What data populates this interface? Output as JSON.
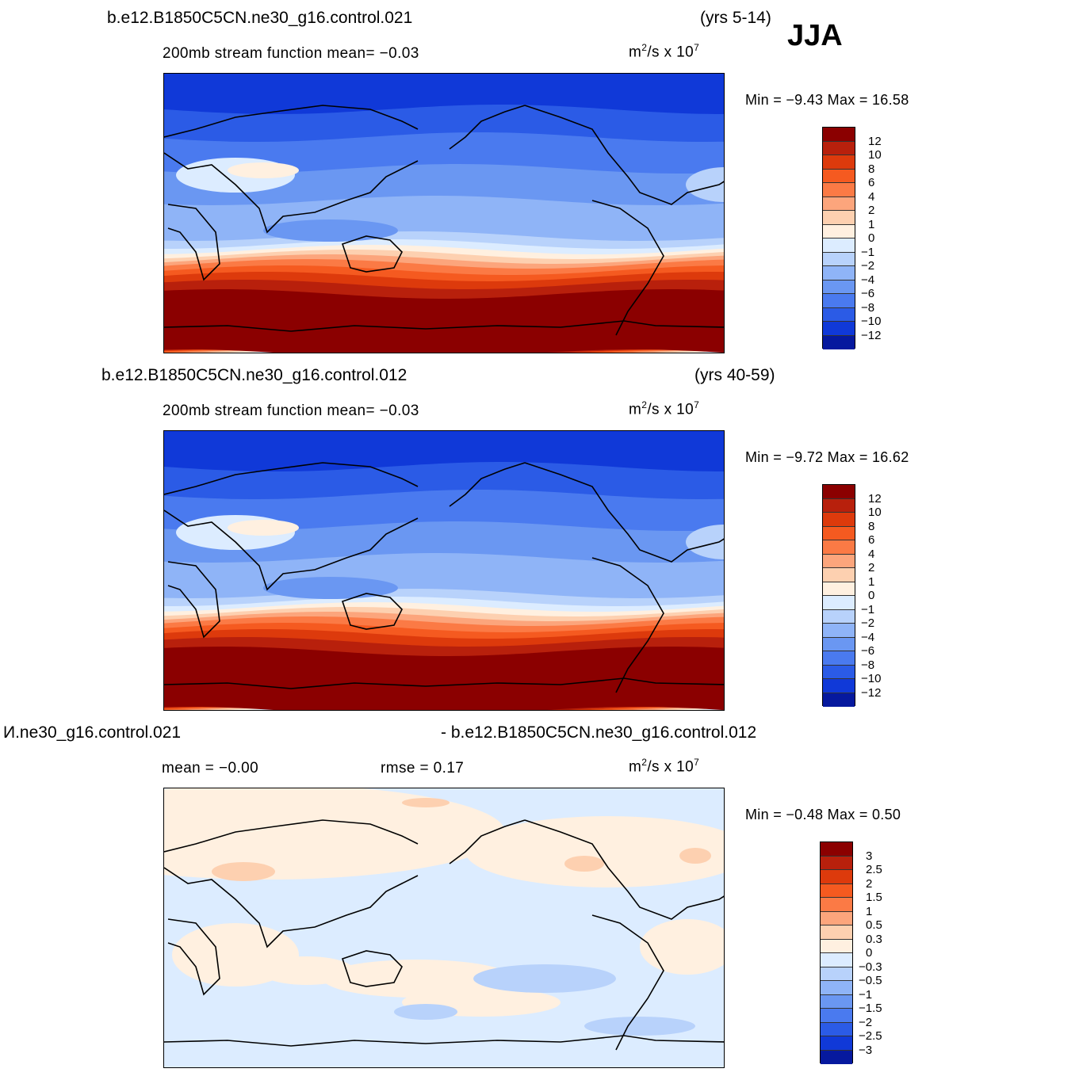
{
  "season": "JJA",
  "panels": [
    {
      "case_label": "b.e12.B1850C5CN.ne30_g16.control.021",
      "years": "(yrs 5-14)",
      "variable_label": "200mb stream function  mean=  −0.03",
      "units_base": "m",
      "units_exp": "2",
      "units_mid": "/s x 10",
      "units_pow": "7",
      "minmax": "Min =  −9.43 Max =   16.58",
      "legend_labels": [
        "12",
        "10",
        "8",
        "6",
        "4",
        "2",
        "1",
        "0",
        "−1",
        "−2",
        "−4",
        "−6",
        "−8",
        "−10",
        "−12"
      ],
      "legend_colors": [
        "#8b0000",
        "#b8200c",
        "#dd3a0c",
        "#f55a20",
        "#fb7a45",
        "#fca57c",
        "#fdd0b0",
        "#fff0e0",
        "#dcecff",
        "#b8d2fb",
        "#8fb4f7",
        "#6a97f2",
        "#4a7aef",
        "#2b5be6",
        "#1039d8",
        "#06199e"
      ]
    },
    {
      "case_label": "b.e12.B1850C5CN.ne30_g16.control.012",
      "years": "(yrs 40-59)",
      "variable_label": "200mb stream function  mean=  −0.03",
      "units_base": "m",
      "units_exp": "2",
      "units_mid": "/s x 10",
      "units_pow": "7",
      "minmax": "Min =  −9.72 Max =   16.62",
      "legend_labels": [
        "12",
        "10",
        "8",
        "6",
        "4",
        "2",
        "1",
        "0",
        "−1",
        "−2",
        "−4",
        "−6",
        "−8",
        "−10",
        "−12"
      ],
      "legend_colors": [
        "#8b0000",
        "#b8200c",
        "#dd3a0c",
        "#f55a20",
        "#fb7a45",
        "#fca57c",
        "#fdd0b0",
        "#fff0e0",
        "#dcecff",
        "#b8d2fb",
        "#8fb4f7",
        "#6a97f2",
        "#4a7aef",
        "#2b5be6",
        "#1039d8",
        "#06199e"
      ]
    },
    {
      "case_label_left": "И.ne30_g16.control.021",
      "case_label_right": "- b.e12.B1850C5CN.ne30_g16.control.012",
      "mean_label": "mean =  −0.00",
      "rmse_label": "rmse =   0.17",
      "units_base": "m",
      "units_exp": "2",
      "units_mid": "/s x 10",
      "units_pow": "7",
      "minmax": "Min =  −0.48 Max =    0.50",
      "legend_labels": [
        "3",
        "2.5",
        "2",
        "1.5",
        "1",
        "0.5",
        "0.3",
        "0",
        "−0.3",
        "−0.5",
        "−1",
        "−1.5",
        "−2",
        "−2.5",
        "−3"
      ],
      "legend_colors": [
        "#8b0000",
        "#b8200c",
        "#dd3a0c",
        "#f55a20",
        "#fb7a45",
        "#fca57c",
        "#fdd0b0",
        "#fff0e0",
        "#dcecff",
        "#b8d2fb",
        "#8fb4f7",
        "#6a97f2",
        "#4a7aef",
        "#2b5be6",
        "#1039d8",
        "#06199e"
      ]
    }
  ],
  "chart_data": [
    {
      "type": "heatmap",
      "title": "200mb stream function",
      "mean": -0.03,
      "min": -9.43,
      "max": 16.58,
      "contour_levels": [
        -12,
        -10,
        -8,
        -6,
        -4,
        -2,
        -1,
        0,
        1,
        2,
        4,
        6,
        8,
        10,
        12
      ]
    },
    {
      "type": "heatmap",
      "title": "200mb stream function",
      "mean": -0.03,
      "min": -9.72,
      "max": 16.62,
      "contour_levels": [
        -12,
        -10,
        -8,
        -6,
        -4,
        -2,
        -1,
        0,
        1,
        2,
        4,
        6,
        8,
        10,
        12
      ]
    },
    {
      "type": "heatmap",
      "mean": 0.0,
      "rmse": 0.17,
      "min": -0.48,
      "max": 0.5,
      "contour_levels": [
        -3,
        -2.5,
        -2,
        -1.5,
        -1,
        -0.5,
        -0.3,
        0,
        0.3,
        0.5,
        1,
        1.5,
        2,
        2.5,
        3
      ]
    }
  ]
}
